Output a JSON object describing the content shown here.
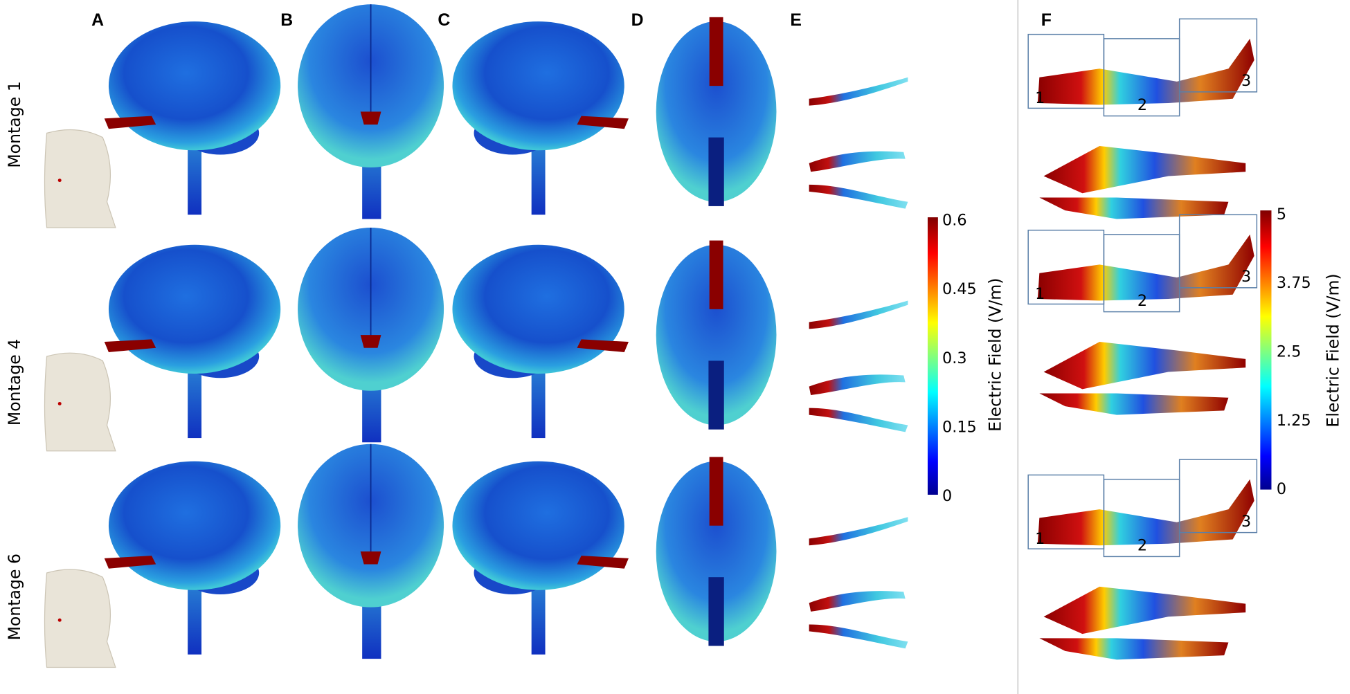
{
  "panels": [
    "A",
    "B",
    "C",
    "D",
    "E",
    "F"
  ],
  "rows": [
    "Montage 1",
    "Montage 4",
    "Montage 6"
  ],
  "colorbars": [
    {
      "ticks": [
        0,
        0.15,
        0.3,
        0.45,
        0.6
      ],
      "label": "Electric Field (V/m)"
    },
    {
      "ticks": [
        0,
        1.25,
        2.5,
        3.75,
        5
      ],
      "label": "Electric Field (V/m)"
    }
  ],
  "regions": [
    [
      "1",
      "2",
      "3"
    ],
    [
      "1",
      "2",
      "3"
    ],
    [
      "1",
      "2",
      "3"
    ]
  ]
}
